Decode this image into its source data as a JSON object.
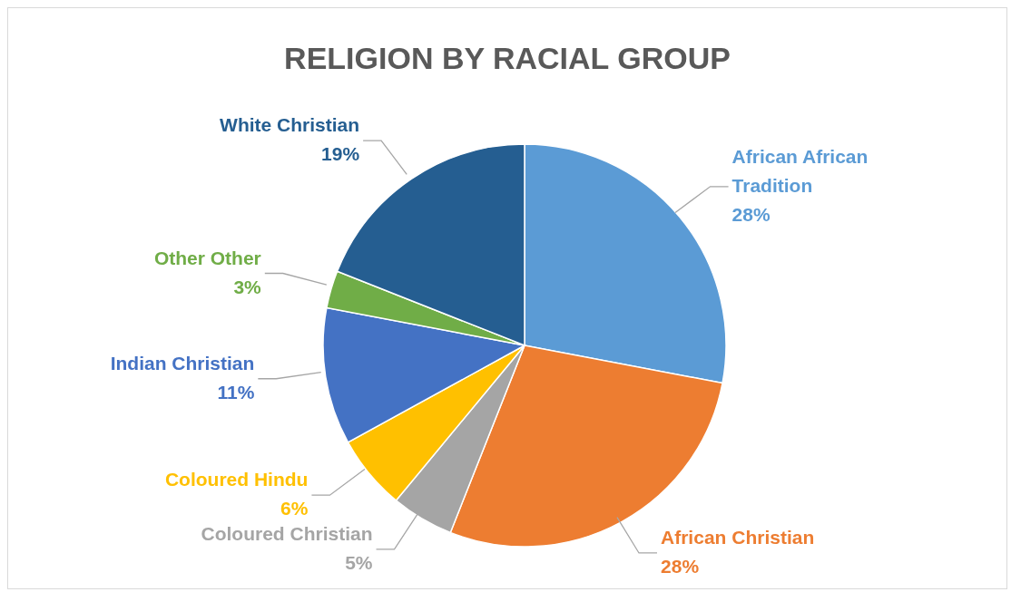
{
  "chart_data": {
    "type": "pie",
    "title": "RELIGION BY RACIAL GROUP",
    "categories": [
      "African African Tradition",
      "African Christian",
      "Coloured Christian",
      "Coloured Hindu",
      "Indian Christian",
      "Other  Other",
      "White Christian"
    ],
    "values": [
      28,
      28,
      5,
      6,
      11,
      3,
      19
    ],
    "value_labels": [
      "28%",
      "28%",
      "5%",
      "6%",
      "11%",
      "3%",
      "19%"
    ],
    "colors": [
      "#5b9bd5",
      "#ed7d31",
      "#a5a5a5",
      "#ffc000",
      "#4472c4",
      "#70ad47",
      "#255e91"
    ],
    "legend": false
  }
}
